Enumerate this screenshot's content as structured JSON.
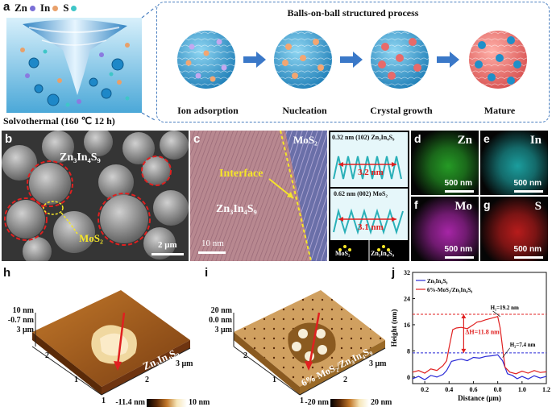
{
  "panel_a": {
    "letter": "a",
    "legend": [
      {
        "name": "Zn",
        "color": "#7a6fd6"
      },
      {
        "name": "In",
        "color": "#e8a06a"
      },
      {
        "name": "S",
        "color": "#3fc6c8"
      }
    ],
    "caption": "Solvothermal (160 ℃ 12 h)",
    "process_title": "Balls-on-ball structured process",
    "stages": [
      "Ion adsorption",
      "Nucleation",
      "Crystal growth",
      "Mature"
    ]
  },
  "panel_b": {
    "letter": "b",
    "label_main": "Zn₃In₄S₉",
    "label_sub": "MoS₂",
    "scale": "2 μm"
  },
  "panel_c": {
    "letter": "c",
    "label_mos2": "MoS₂",
    "label_interface": "Interface",
    "label_zis": "Zn₃In₄S₉",
    "scale": "10 nm",
    "inset1_title": "0.32 nm (102) Zn₃In₄S₉",
    "inset1_len": "3.2 nm",
    "inset2_title": "0.62 nm (002) MoS₂",
    "inset2_len": "3.1 nm",
    "fft1": "MoS₂",
    "fft2": "Zn₃In₄S₉"
  },
  "panel_maps": [
    {
      "letter": "d",
      "element": "Zn",
      "scale": "500 nm",
      "color": "#2bb52b"
    },
    {
      "letter": "e",
      "element": "In",
      "scale": "500 nm",
      "color": "#1fb8b8"
    },
    {
      "letter": "f",
      "element": "Mo",
      "scale": "500 nm",
      "color": "#c22bc2"
    },
    {
      "letter": "g",
      "element": "S",
      "scale": "500 nm",
      "color": "#d62020"
    }
  ],
  "panel_h": {
    "letter": "h",
    "z_top": "10 nm",
    "z_mid": "-0.7 nm",
    "y_top": "3 μm",
    "ticks_left": [
      "2",
      "1"
    ],
    "ticks_bottom": [
      "1",
      "2",
      "3 μm"
    ],
    "sample": "Zn₃In₄S₉",
    "cbar_min": "-11.4 nm",
    "cbar_max": "10 nm"
  },
  "panel_i": {
    "letter": "i",
    "z_top": "20 nm",
    "z_mid": "0.0 nm",
    "y_top": "3 μm",
    "ticks_left": [
      "2",
      "1"
    ],
    "ticks_bottom": [
      "1",
      "2",
      "3 μm"
    ],
    "sample": "6% MoS₂/Zn₃In₄S₉",
    "cbar_min": "-20 nm",
    "cbar_max": "20 nm"
  },
  "panel_j": {
    "letter": "j",
    "annot_h1": "H₁=19.2 nm",
    "annot_h2": "H₂=7.4 nm",
    "annot_dh": "ΔH=11.8 nm",
    "chart_data": {
      "type": "line",
      "xlabel": "Distance (μm)",
      "ylabel": "Height (nm)",
      "xlim": [
        0.1,
        1.2
      ],
      "ylim": [
        -2,
        32
      ],
      "xticks": [
        "0.2",
        "0.4",
        "0.6",
        "0.8",
        "1.0",
        "1.2"
      ],
      "yticks": [
        "0",
        "8",
        "16",
        "24",
        "32"
      ],
      "legend_placement": "top-left",
      "series": [
        {
          "name": "Zn₃In₄S₉",
          "color": "#2a2ad6",
          "x": [
            0.1,
            0.15,
            0.2,
            0.25,
            0.3,
            0.35,
            0.38,
            0.42,
            0.46,
            0.5,
            0.55,
            0.6,
            0.65,
            0.7,
            0.75,
            0.8,
            0.84,
            0.88,
            0.92,
            0.96,
            1.0,
            1.05,
            1.1,
            1.15,
            1.2
          ],
          "y": [
            -0.5,
            0.2,
            -0.8,
            0.5,
            0.0,
            0.8,
            2.0,
            4.8,
            5.2,
            5.5,
            5.0,
            6.0,
            5.8,
            6.3,
            6.5,
            6.8,
            5.0,
            1.0,
            0.5,
            -0.5,
            0.2,
            -0.6,
            0.4,
            -0.3,
            0.2
          ]
        },
        {
          "name": "6%-MoS₂/Zn₃In₄S₉",
          "color": "#e02020",
          "x": [
            0.1,
            0.15,
            0.2,
            0.25,
            0.3,
            0.35,
            0.38,
            0.4,
            0.43,
            0.46,
            0.5,
            0.55,
            0.6,
            0.63,
            0.66,
            0.7,
            0.75,
            0.8,
            0.82,
            0.84,
            0.86,
            0.9,
            0.95,
            1.0,
            1.05,
            1.1,
            1.15,
            1.2
          ],
          "y": [
            1.5,
            2.0,
            1.2,
            2.5,
            2.0,
            3.5,
            5.0,
            9.0,
            14.5,
            15.0,
            15.2,
            14.8,
            16.0,
            16.8,
            17.0,
            17.5,
            18.0,
            18.5,
            15.0,
            9.0,
            3.0,
            1.5,
            1.0,
            1.8,
            1.2,
            2.0,
            1.4,
            1.6
          ]
        }
      ],
      "reference_lines": [
        {
          "y": 19.2,
          "color": "#e02020"
        },
        {
          "y": 7.4,
          "color": "#2a2ad6"
        }
      ]
    }
  }
}
